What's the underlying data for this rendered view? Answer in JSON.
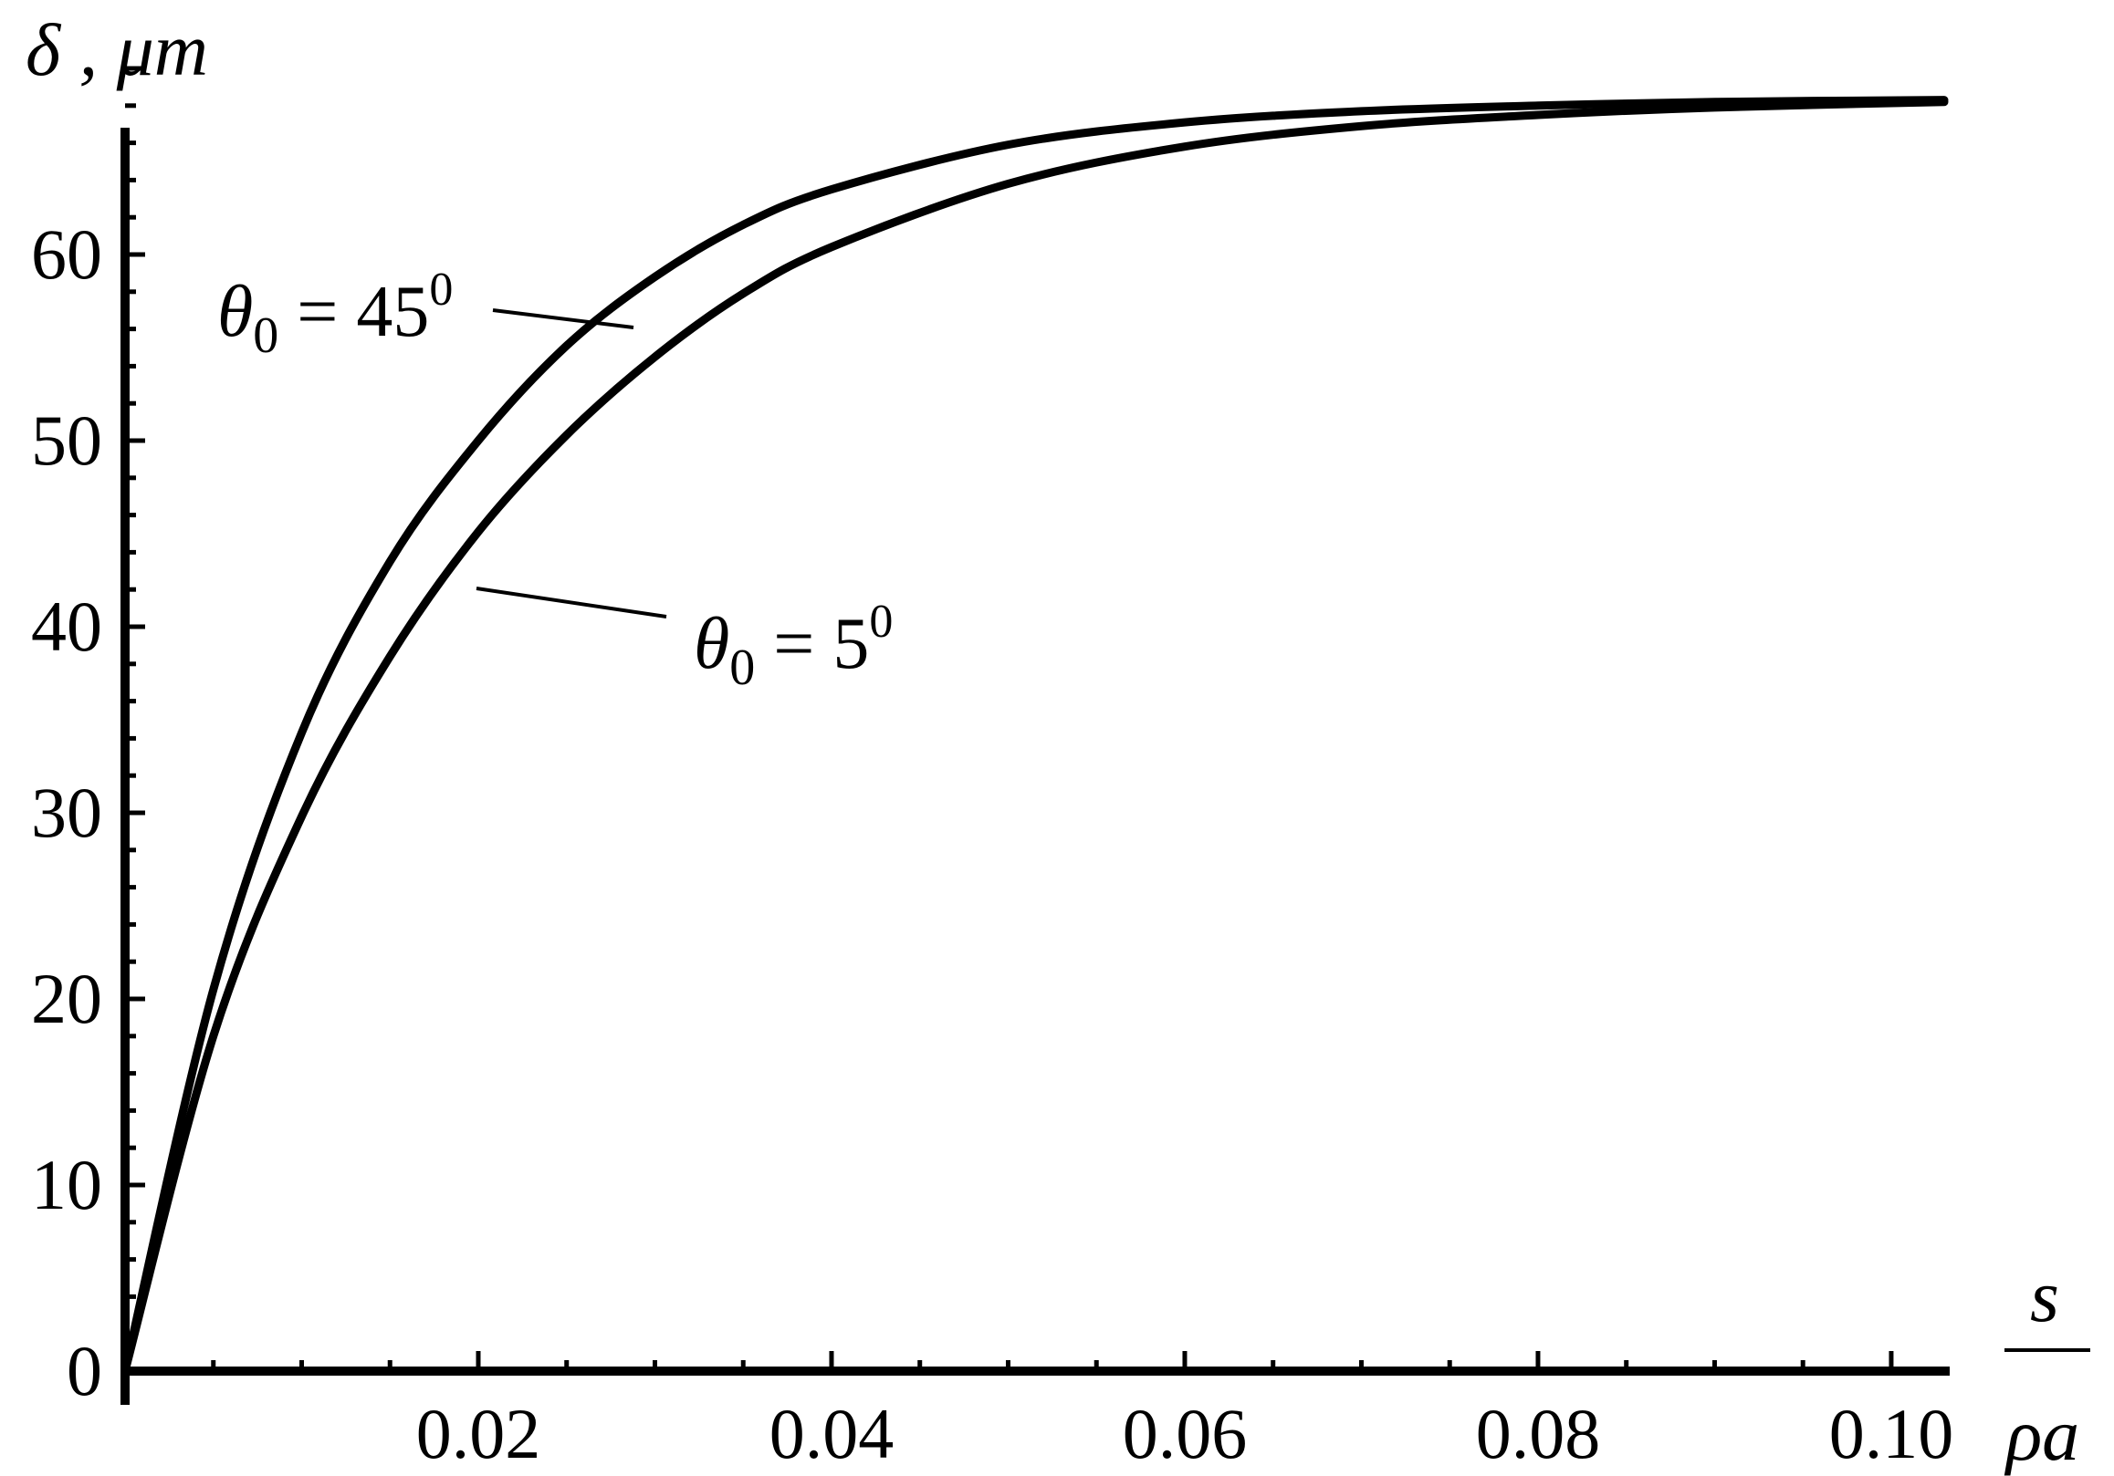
{
  "chart_data": {
    "type": "line",
    "xlabel_num": "s",
    "xlabel_den": "ρa",
    "ylabel": "δ , μm",
    "xlim": [
      0,
      0.103
    ],
    "ylim": [
      0,
      70
    ],
    "x_ticks": [
      "0.02",
      "0.04",
      "0.06",
      "0.08",
      "0.10"
    ],
    "x_tick_values": [
      0.02,
      0.04,
      0.06,
      0.08,
      0.1
    ],
    "y_ticks": [
      "0",
      "10",
      "20",
      "30",
      "40",
      "50",
      "60"
    ],
    "y_tick_values": [
      0,
      10,
      20,
      30,
      40,
      50,
      60
    ],
    "series": [
      {
        "annotation": {
          "symbol": "θ",
          "sub": "0",
          "eq": " = 45",
          "sup": "0"
        },
        "x": [
          0,
          0.005,
          0.01,
          0.015,
          0.02,
          0.025,
          0.03,
          0.035,
          0.04,
          0.05,
          0.06,
          0.07,
          0.08,
          0.09,
          0.103
        ],
        "values": [
          0,
          20.5,
          34.3,
          43.5,
          50.0,
          55.1,
          58.8,
          61.6,
          63.5,
          65.9,
          67.1,
          67.7,
          68.0,
          68.2,
          68.3
        ]
      },
      {
        "annotation": {
          "symbol": "θ",
          "sub": "0",
          "eq": " = 5",
          "sup": "0"
        },
        "x": [
          0,
          0.005,
          0.01,
          0.015,
          0.02,
          0.025,
          0.03,
          0.035,
          0.04,
          0.05,
          0.06,
          0.07,
          0.08,
          0.09,
          0.103
        ],
        "values": [
          0,
          18.0,
          29.8,
          38.4,
          45.1,
          50.3,
          54.5,
          57.9,
          60.4,
          63.8,
          65.8,
          66.9,
          67.5,
          67.9,
          68.2
        ]
      }
    ]
  }
}
